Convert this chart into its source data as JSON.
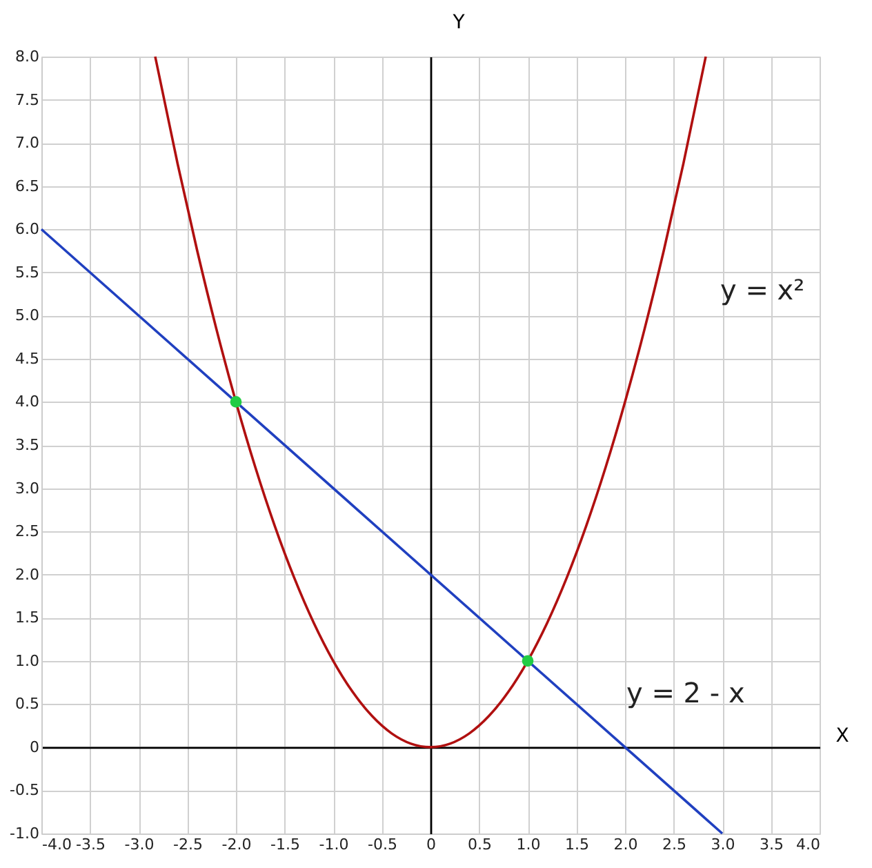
{
  "chart_data": {
    "type": "line",
    "xlabel": "X",
    "ylabel": "Y",
    "xlim": [
      -4,
      4
    ],
    "ylim": [
      -1,
      8
    ],
    "xticks": [
      {
        "value": -4,
        "label": "-4.0"
      },
      -3.5,
      {
        "value": -3,
        "label": "-3.0"
      },
      -2.5,
      {
        "value": -2,
        "label": "-2.0"
      },
      -1.5,
      {
        "value": -1,
        "label": "-1.0"
      },
      -0.5,
      0,
      0.5,
      {
        "value": 1,
        "label": "1.0"
      },
      1.5,
      {
        "value": 2,
        "label": "2.0"
      },
      2.5,
      {
        "value": 3,
        "label": "3.0"
      },
      3.5,
      {
        "value": 4,
        "label": "4.0"
      }
    ],
    "yticks": [
      {
        "value": -1,
        "label": "-1.0"
      },
      -0.5,
      0,
      0.5,
      {
        "value": 1,
        "label": "1.0"
      },
      1.5,
      {
        "value": 2,
        "label": "2.0"
      },
      2.5,
      {
        "value": 3,
        "label": "3.0"
      },
      3.5,
      {
        "value": 4,
        "label": "4.0"
      },
      4.5,
      {
        "value": 5,
        "label": "5.0"
      },
      5.5,
      {
        "value": 6,
        "label": "6.0"
      },
      6.5,
      {
        "value": 7,
        "label": "7.0"
      },
      7.5,
      {
        "value": 8,
        "label": "8.0"
      }
    ],
    "grid": true,
    "series": [
      {
        "color": "#b01010",
        "marker": "none",
        "line_style": "solid",
        "x": [
          -2.83,
          -2.6,
          -2.4,
          -2.2,
          -2.0,
          -1.8,
          -1.6,
          -1.4,
          -1.2,
          -1.0,
          -0.8,
          -0.6,
          -0.4,
          -0.2,
          0,
          0.2,
          0.4,
          0.6,
          0.8,
          1.0,
          1.2,
          1.4,
          1.6,
          1.8,
          2.0,
          2.2,
          2.4,
          2.6,
          2.83
        ],
        "values": [
          8.0,
          6.76,
          5.76,
          4.84,
          4.0,
          3.24,
          2.56,
          1.96,
          1.44,
          1.0,
          0.64,
          0.36,
          0.16,
          0.04,
          0,
          0.04,
          0.16,
          0.36,
          0.64,
          1.0,
          1.44,
          1.96,
          2.56,
          3.24,
          4.0,
          4.84,
          5.76,
          6.76,
          8.0
        ]
      },
      {
        "color": "#2040c0",
        "marker": "none",
        "line_style": "solid",
        "x": [
          -4,
          3
        ],
        "values": [
          6,
          -1
        ]
      },
      {
        "type": "scatter",
        "color": "#22cc44",
        "marker": "circle",
        "x": [
          -2,
          1
        ],
        "values": [
          4,
          1
        ]
      }
    ],
    "annotations": [
      "y = x²",
      "y = 2 - x"
    ]
  }
}
